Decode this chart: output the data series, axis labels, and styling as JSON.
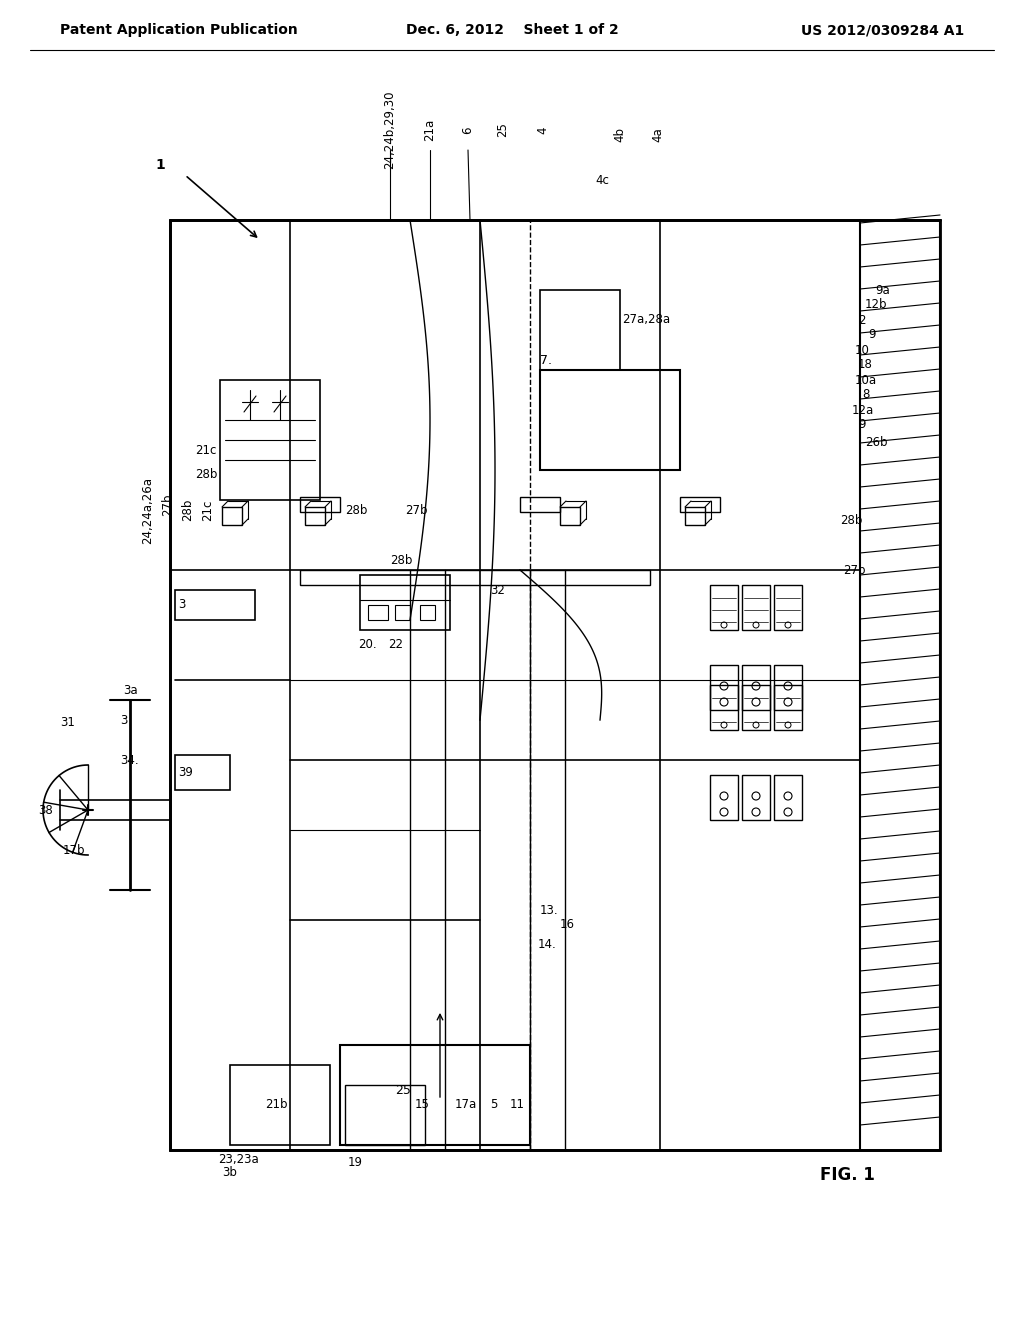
{
  "title_left": "Patent Application Publication",
  "title_center": "Dec. 6, 2012    Sheet 1 of 2",
  "title_right": "US 2012/0309284 A1",
  "fig_label": "FIG. 1",
  "bg_color": "#ffffff",
  "line_color": "#000000",
  "text_color": "#000000"
}
